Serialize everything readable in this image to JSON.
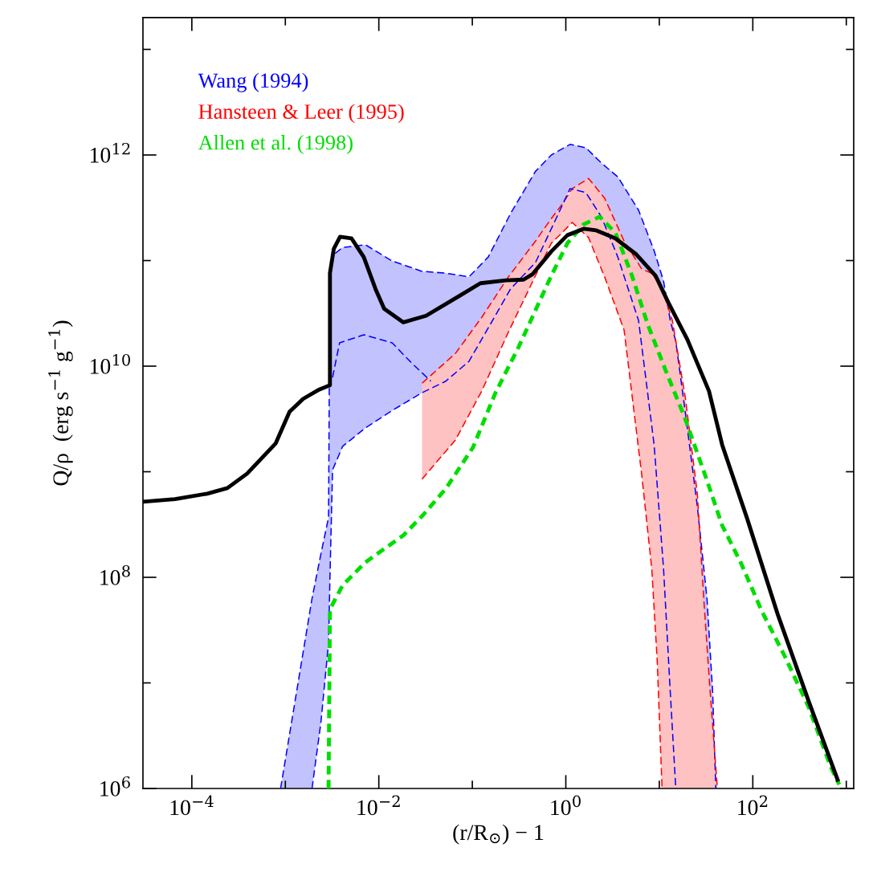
{
  "chart_data": {
    "type": "line",
    "xlabel": "(r/R$_{⊙}$) − 1",
    "ylabel": "Q/ρ  (erg s$^{−1}$ g$^{−1}$)",
    "log": "xy",
    "xlim": [
      3e-05,
      1200
    ],
    "ylim": [
      1000000,
      20000000000000.0
    ],
    "xticks": [
      {
        "value": 0.0001,
        "label": "10$^{−4}$"
      },
      {
        "value": 0.001,
        "label": null
      },
      {
        "value": 0.01,
        "label": "10$^{−2}$"
      },
      {
        "value": 0.1,
        "label": null
      },
      {
        "value": 1,
        "label": "10$^{0}$"
      },
      {
        "value": 10,
        "label": null
      },
      {
        "value": 100,
        "label": "10$^{2}$"
      },
      {
        "value": 1000,
        "label": null
      }
    ],
    "yticks": [
      {
        "value": 1000000,
        "label": "10$^{6}$"
      },
      {
        "value": 10000000,
        "label": null
      },
      {
        "value": 100000000,
        "label": "10$^{8}$"
      },
      {
        "value": 1000000000,
        "label": null
      },
      {
        "value": 10000000000,
        "label": "10$^{10}$"
      },
      {
        "value": 100000000000,
        "label": null
      },
      {
        "value": 1000000000000,
        "label": "10$^{12}$"
      },
      {
        "value": 10000000000000,
        "label": null
      }
    ],
    "grid": false,
    "legend": "top left",
    "marker": "none",
    "series": [
      {
        "name": "Wang (1994)",
        "color": "#0000ff",
        "line_style": "dashed",
        "x": [
          0.00089,
          0.00193,
          0.0024,
          0.0029,
          0.003,
          0.0032,
          0.0041,
          0.0072,
          0.0139,
          0.029,
          0.052,
          0.092,
          0.148,
          0.257,
          0.474,
          0.7,
          1.11,
          1.64,
          2.4,
          3.6,
          6.0,
          8.8,
          11.1,
          13.1,
          15.0,
          19.0,
          25.5,
          32.4,
          37.2,
          40.2
        ],
        "values": [
          1000000.0,
          63000000.0,
          166000000.0,
          370000000.0,
          91000000000.0,
          112000000000.0,
          133000000000.0,
          141000000000.0,
          99000000000.0,
          79000000000.0,
          76000000000.0,
          70000000000.0,
          108000000000.0,
          280000000000.0,
          700000000000.0,
          1000000000000.0,
          1260000000000.0,
          1170000000000.0,
          840000000000.0,
          620000000000.0,
          300000000000.0,
          124000000000.0,
          64000000000.0,
          27000000000.0,
          17200000000.0,
          3600000000.0,
          470000000.0,
          62000000.0,
          8200000.0,
          1000000.0
        ],
        "upper": [
          1000000.0,
          63000000.0,
          166000000.0,
          370000000.0,
          91000000000.0,
          112000000000.0,
          133000000000.0,
          141000000000.0,
          99000000000.0,
          79000000000.0,
          76000000000.0,
          70000000000.0,
          108000000000.0,
          280000000000.0,
          700000000000.0,
          1000000000000.0,
          1260000000000.0,
          1170000000000.0,
          840000000000.0,
          620000000000.0,
          300000000000.0,
          124000000000.0,
          64000000000.0,
          27000000000.0,
          17200000000.0,
          3600000000.0,
          470000000.0,
          62000000.0,
          8200000.0,
          1000000.0
        ],
        "lower": [
          1000000.0,
          1000000.0,
          4200000.0,
          24000000.0,
          98000000.0,
          1040000000.0,
          1740000000.0,
          2600000000.0,
          3800000000.0,
          5600000000.0,
          7200000000.0,
          11100000000.0,
          23000000000.0,
          54000000000.0,
          96000000000.0,
          200000000000.0,
          480000000000.0,
          440000000000.0,
          260000000000.0,
          108000000000.0,
          27000000000.0,
          1800000000.0,
          121000000.0,
          8200000.0,
          1000000.0,
          1000000.0,
          1000000.0,
          1000000.0,
          1000000.0,
          1000000.0
        ]
      },
      {
        "name": "Hansteen & Leer (1995)",
        "color": "#ff0000",
        "line_style": "dashed",
        "x": [
          0.029,
          0.066,
          0.126,
          0.243,
          0.474,
          0.7,
          0.91,
          1.17,
          1.75,
          2.6,
          4.2,
          6.5,
          8.3,
          9.5,
          10.7,
          13.8,
          19.0,
          25.5,
          29.9,
          35.0,
          41.8
        ],
        "values": [
          6900000000.0,
          13200000000.0,
          29000000000.0,
          70000000000.0,
          153000000000.0,
          250000000000.0,
          340000000000.0,
          480000000000.0,
          600000000000.0,
          390000000000.0,
          153000000000.0,
          83000000000.0,
          76000000000.0,
          64000000000.0,
          54000000000.0,
          27000000000.0,
          5000000000.0,
          620000000.0,
          62000000.0,
          8200000.0,
          1000000.0
        ],
        "upper": [
          6900000000.0,
          13200000000.0,
          29000000000.0,
          70000000000.0,
          153000000000.0,
          250000000000.0,
          340000000000.0,
          480000000000.0,
          600000000000.0,
          390000000000.0,
          153000000000.0,
          83000000000.0,
          76000000000.0,
          64000000000.0,
          54000000000.0,
          27000000000.0,
          5000000000.0,
          620000000.0,
          62000000.0,
          8200000.0,
          1000000.0
        ],
        "lower": [
          850000000.0,
          2000000000.0,
          5800000000.0,
          21000000000.0,
          72000000000.0,
          146000000000.0,
          183000000000.0,
          230000000000.0,
          165000000000.0,
          70000000000.0,
          22000000000.0,
          920000000.0,
          121000000.0,
          16200000.0,
          1000000.0,
          1000000.0,
          1000000.0,
          1000000.0,
          1000000.0,
          1000000.0,
          1000000.0
        ]
      },
      {
        "name": "Allen et al. (1998)",
        "color": "#00dd00",
        "line_style": "dotted",
        "x": [
          0.0029,
          0.003,
          0.0041,
          0.0072,
          0.0183,
          0.029,
          0.052,
          0.102,
          0.177,
          0.313,
          0.7,
          1.04,
          1.55,
          2.3,
          3.4,
          5.1,
          7.5,
          11.8,
          18.6,
          32,
          47,
          74,
          126,
          215,
          396,
          676,
          840
        ],
        "values": [
          1000000.0,
          50000000.0,
          84000000.0,
          139000000.0,
          250000000.0,
          380000000.0,
          690000000.0,
          1710000000.0,
          5600000000.0,
          15200000000.0,
          72000000000.0,
          146000000000.0,
          220000000000.0,
          260000000000.0,
          183000000000.0,
          72000000000.0,
          25000000000.0,
          8900000000.0,
          3300000000.0,
          850000000.0,
          310000000.0,
          139000000.0,
          47000000.0,
          18600000.0,
          5900000.0,
          1630000.0,
          1090000.0
        ]
      },
      {
        "color": "#000000",
        "line_style": "solid",
        "x": [
          3e-05,
          6.6e-05,
          0.000146,
          0.00024,
          0.00039,
          0.00079,
          0.00111,
          0.00155,
          0.0023,
          0.003,
          0.003,
          0.0033,
          0.00385,
          0.0051,
          0.0069,
          0.0092,
          0.0114,
          0.0183,
          0.032,
          0.069,
          0.122,
          0.229,
          0.353,
          0.439,
          0.7,
          1.04,
          1.55,
          2.12,
          3.4,
          5.7,
          9.1,
          12.5,
          20,
          34,
          47,
          87,
          184,
          396,
          807
        ],
        "values": [
          520000000.0,
          550000000.0,
          620000000.0,
          700000000.0,
          960000000.0,
          1860000000.0,
          3700000000.0,
          4900000000.0,
          6000000000.0,
          6600000000.0,
          76000000000.0,
          129000000000.0,
          168000000000.0,
          162000000000.0,
          108000000000.0,
          54000000000.0,
          35000000000.0,
          26000000000.0,
          30000000000.0,
          45000000000.0,
          61000000000.0,
          65000000000.0,
          66000000000.0,
          74000000000.0,
          122000000000.0,
          174000000000.0,
          200000000000.0,
          193000000000.0,
          162000000000.0,
          114000000000.0,
          72000000000.0,
          40000000000.0,
          17800000000.0,
          5800000000.0,
          1800000000.0,
          360000000.0,
          45000000.0,
          6700000.0,
          1210000.0
        ]
      },
      {
        "color": "#0000ff",
        "line_style": "dashed",
        "x": [
          0.00193,
          0.0024,
          0.0029,
          0.003,
          0.0032,
          0.0041,
          0.0072,
          0.0139,
          0.029,
          0.052,
          0.092,
          0.148,
          0.257,
          0.474,
          0.7,
          1.11,
          1.64,
          2.4,
          3.6,
          6.0,
          8.8,
          11.1,
          13.1,
          15.0
        ],
        "values": [
          1000000.0,
          4200000.0,
          24000000.0,
          98000000.0,
          1040000000.0,
          1740000000.0,
          2600000000.0,
          3800000000.0,
          5600000000.0,
          7200000000.0,
          11100000000.0,
          23000000000.0,
          54000000000.0,
          96000000000.0,
          200000000000.0,
          480000000000.0,
          440000000000.0,
          260000000000.0,
          108000000000.0,
          27000000000.0,
          1800000000.0,
          121000000.0,
          8200000.0,
          1000000.0
        ]
      },
      {
        "color": "#0000ff",
        "line_style": "dashed",
        "x": [
          0.0032,
          0.0038,
          0.0069,
          0.0139,
          0.022,
          0.036
        ],
        "values": [
          7800000000.0,
          16600000000.0,
          19800000000.0,
          16600000000.0,
          10900000000.0,
          7200000000.0
        ]
      },
      {
        "color": "#ff0000",
        "line_style": "dashed",
        "x": [
          0.029,
          0.066,
          0.126,
          0.243,
          0.474,
          0.7,
          0.91,
          1.17,
          1.75,
          2.6,
          4.2,
          6.5,
          8.3,
          9.5,
          10.7
        ],
        "values": [
          850000000.0,
          2000000000.0,
          5800000000.0,
          21000000000.0,
          72000000000.0,
          146000000000.0,
          183000000000.0,
          230000000000.0,
          165000000000.0,
          70000000000.0,
          22000000000.0,
          920000000.0,
          121000000.0,
          16200000.0,
          1000000.0
        ]
      }
    ]
  }
}
